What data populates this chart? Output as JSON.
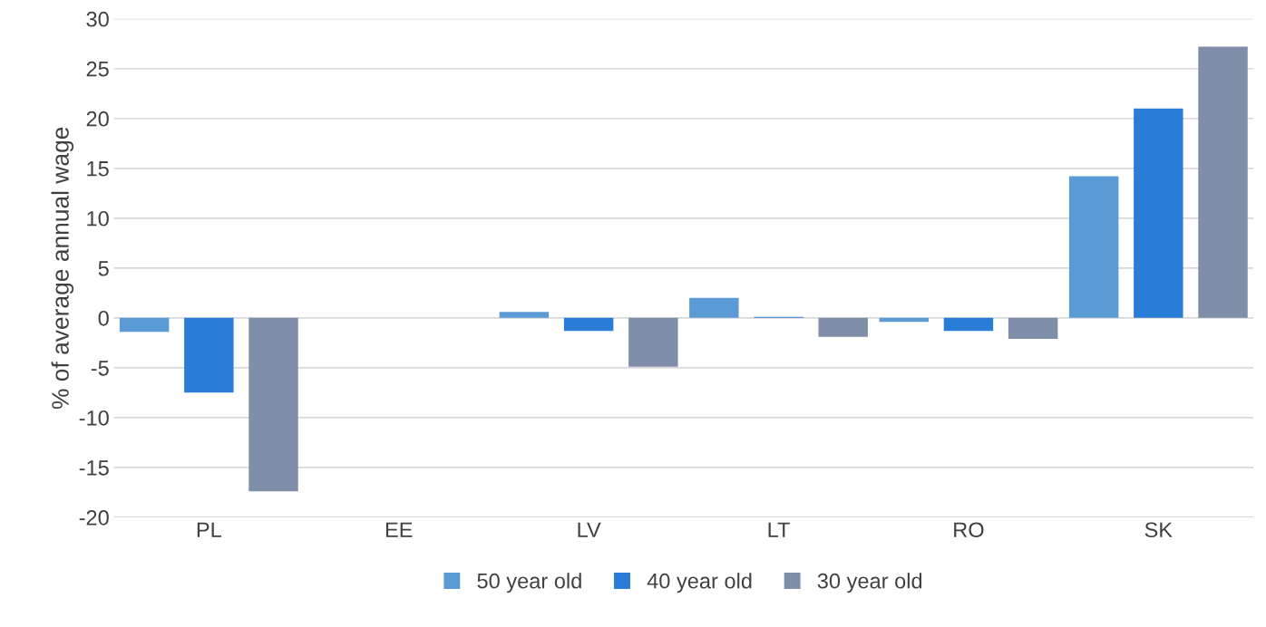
{
  "chart_data": {
    "type": "bar",
    "ylabel": "% of average annual wage",
    "categories": [
      "PL",
      "EE",
      "LV",
      "LT",
      "RO",
      "SK"
    ],
    "series": [
      {
        "name": "50 year old",
        "color": "#5b9bd5",
        "values": [
          -1.4,
          0,
          0.6,
          2.0,
          -0.4,
          14.2
        ]
      },
      {
        "name": "40 year old",
        "color": "#2a7dd6",
        "values": [
          -7.5,
          0,
          -1.3,
          0.1,
          -1.3,
          21.0
        ]
      },
      {
        "name": "30 year old",
        "color": "#7f8ea9",
        "values": [
          -17.4,
          0,
          -4.9,
          -1.9,
          -2.1,
          27.2
        ]
      }
    ],
    "ylim": [
      -20,
      30
    ],
    "yticks": [
      -20,
      -15,
      -10,
      -5,
      0,
      5,
      10,
      15,
      20,
      25,
      30
    ],
    "grid": "y",
    "legend": "bottom"
  }
}
